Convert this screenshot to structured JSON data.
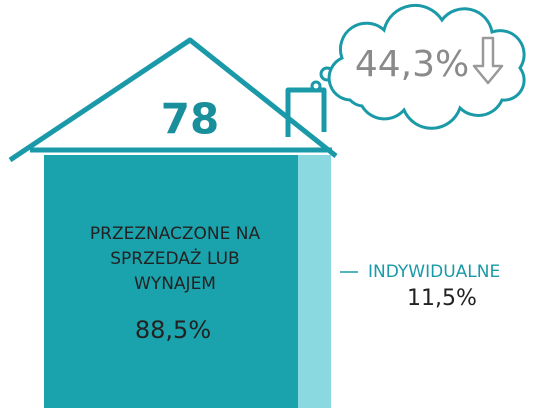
{
  "chart_data": {
    "type": "house",
    "total": 78,
    "change": 44.3,
    "change_label": "44,3%",
    "categories": [
      "PRZEZNACZONE NA SPRZEDAŻ LUB WYNAJEM",
      "INDYWIDUALNE"
    ],
    "values": [
      88.5,
      11.5
    ],
    "value_labels": [
      "88,5%",
      "11,5%"
    ],
    "colors": [
      "#1aa3ad",
      "#8ad9e0"
    ]
  }
}
